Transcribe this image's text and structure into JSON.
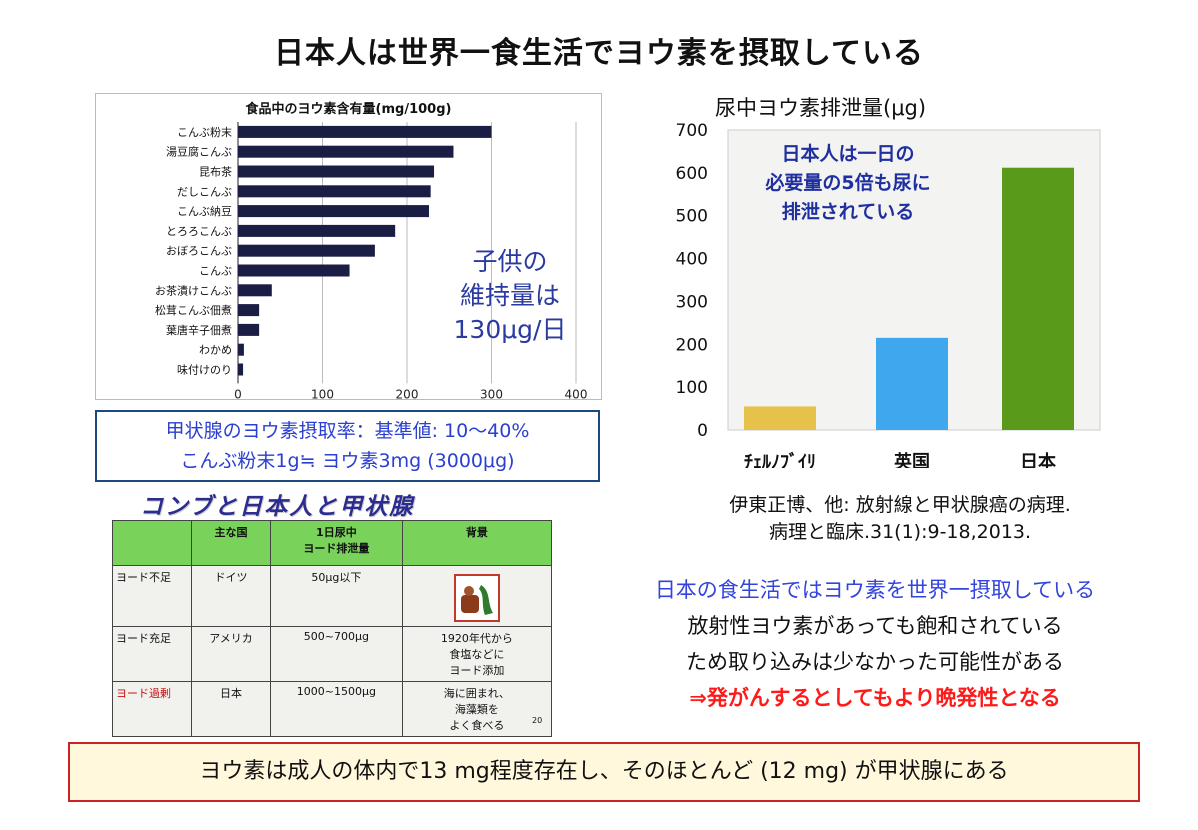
{
  "title": "日本人は世界一食生活でヨウ素を摂取している",
  "chart_data": [
    {
      "type": "bar",
      "orientation": "horizontal",
      "title": "食品中のヨウ素含有量(mg/100g)",
      "categories": [
        "こんぶ粉末",
        "湯豆腐こんぶ",
        "昆布茶",
        "だしこんぶ",
        "こんぶ納豆",
        "とろろこんぶ",
        "おぼろこんぶ",
        "こんぶ",
        "お茶漬けこんぶ",
        "松茸こんぶ佃煮",
        "葉唐辛子佃煮",
        "わかめ",
        "味付けのり"
      ],
      "values": [
        300,
        255,
        232,
        228,
        226,
        186,
        162,
        132,
        40,
        25,
        25,
        7,
        6
      ],
      "xlim": [
        0,
        400
      ],
      "xticks": [
        "0",
        "100",
        "200",
        "300",
        "400"
      ],
      "bar_color": "#1a1d44",
      "grid": true,
      "annotation": [
        "子供の",
        "維持量は",
        "130μg/日"
      ]
    },
    {
      "type": "bar",
      "title": "尿中ヨウ素排泄量(μg)",
      "categories": [
        "ﾁｪﾙﾉﾌﾞｲﾘ",
        "英国",
        "日本"
      ],
      "values": [
        55,
        215,
        612
      ],
      "colors": [
        "#e6c24a",
        "#3ea7ee",
        "#5a9a1a"
      ],
      "ylim": [
        0,
        700
      ],
      "yticks": [
        "0",
        "100",
        "200",
        "300",
        "400",
        "500",
        "600",
        "700"
      ],
      "annotation": [
        "日本人は一日の",
        "必要量の5倍も尿に",
        "排泄されている"
      ]
    }
  ],
  "thyroid_box": {
    "line1": "甲状腺のヨウ素摂取率：基準値: 10～40%",
    "line2": "こんぶ粉末1g≒ ヨウ素3mg (3000μg)"
  },
  "citation": {
    "line1": "伊東正博、他: 放射線と甲状腺癌の病理.",
    "line2": "病理と臨床.31(1):9-18,2013."
  },
  "conclusion": {
    "line1": "日本の食生活ではヨウ素を世界一摂取している",
    "line2": "放射性ヨウ素があっても飽和されている",
    "line3": "ため取り込みは少なかった可能性がある",
    "line4": "⇒発がんするとしてもより晩発性となる"
  },
  "konbu_table": {
    "heading": "コンブと日本人と甲状腺",
    "headers": [
      "",
      "主な国",
      "1日尿中\nヨード排泄量",
      "背景"
    ],
    "rows": [
      {
        "status": "ヨード不足",
        "country": "ドイツ",
        "value": "50μg以下",
        "background": ""
      },
      {
        "status": "ヨード充足",
        "country": "アメリカ",
        "value": "500~700μg",
        "background": "1920年代から\n食塩などに\nヨード添加"
      },
      {
        "status": "ヨード過剰",
        "country": "日本",
        "value": "1000~1500μg",
        "background": "海に囲まれ、\n海藻類を\nよく食べる"
      }
    ],
    "page_number": "20"
  },
  "bottom_note": "ヨウ素は成人の体内で13 mg程度存在し、そのほとんど (12 mg) が甲状腺にある"
}
